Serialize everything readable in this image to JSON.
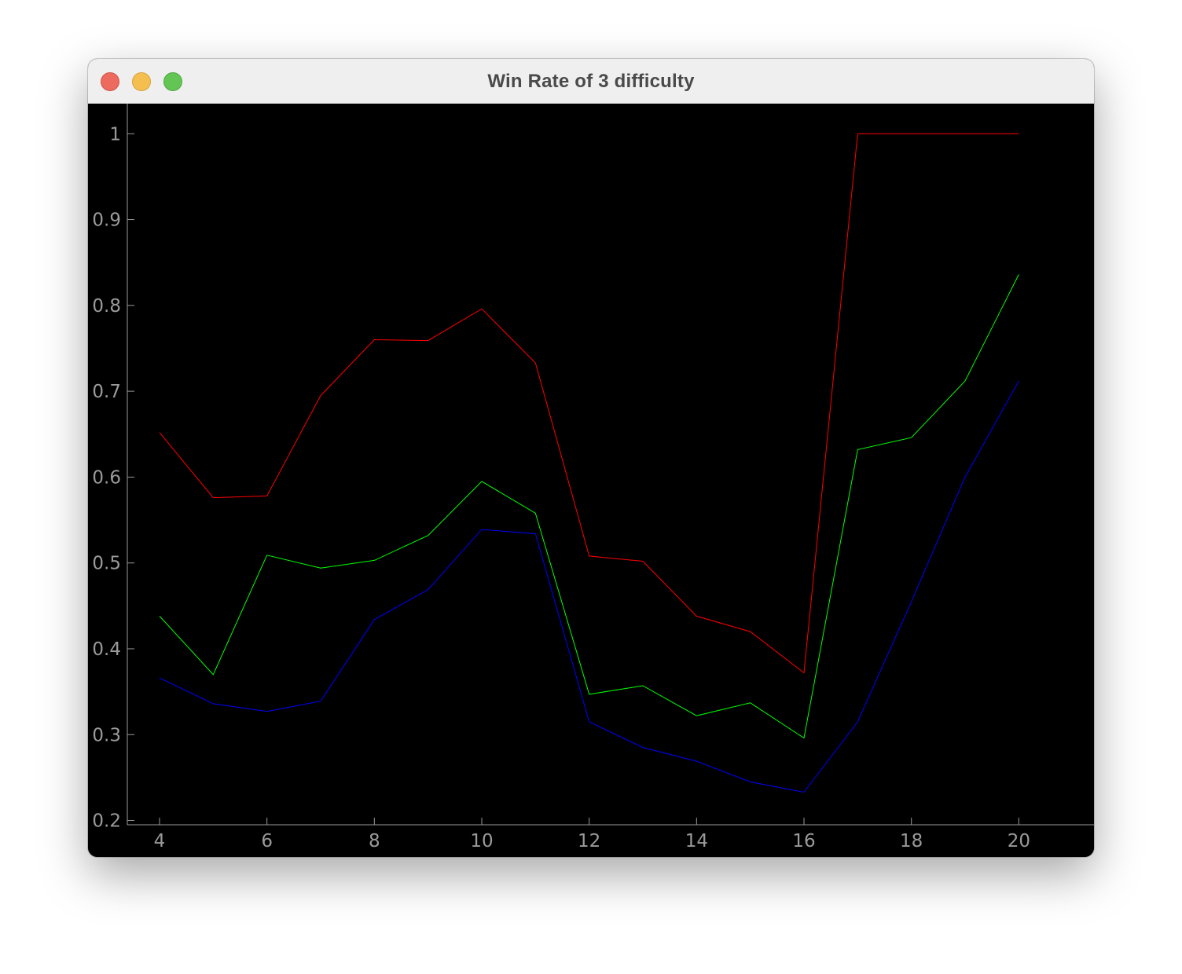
{
  "window": {
    "title": "Win Rate of 3 difficulty"
  },
  "colors": {
    "background": "#000000",
    "axis": "#9a9a9a",
    "titlebar": "#efefef"
  },
  "chart_data": {
    "type": "line",
    "title": "",
    "xlabel": "",
    "ylabel": "",
    "xlim": [
      3.4,
      21.4
    ],
    "ylim": [
      0.195,
      1.035
    ],
    "xticks": [
      4,
      6,
      8,
      10,
      12,
      14,
      16,
      18,
      20
    ],
    "xtick_labels": [
      "4",
      "6",
      "8",
      "10",
      "12",
      "14",
      "16",
      "18",
      "20"
    ],
    "yticks": [
      0.2,
      0.3,
      0.4,
      0.5,
      0.6,
      0.7,
      0.8,
      0.9,
      1.0
    ],
    "ytick_labels": [
      "0.2",
      "0.3",
      "0.4",
      "0.5",
      "0.6",
      "0.7",
      "0.8",
      "0.9",
      "1"
    ],
    "grid": false,
    "x": [
      4,
      5,
      6,
      7,
      8,
      9,
      10,
      11,
      12,
      13,
      14,
      15,
      16,
      17,
      18,
      19,
      20
    ],
    "series": [
      {
        "color": "#ff0000",
        "values": [
          0.652,
          0.576,
          0.578,
          0.695,
          0.76,
          0.759,
          0.796,
          0.733,
          0.508,
          0.502,
          0.438,
          0.42,
          0.372,
          1.0,
          1.0,
          1.0,
          1.0
        ]
      },
      {
        "color": "#00ff00",
        "values": [
          0.438,
          0.37,
          0.509,
          0.494,
          0.503,
          0.532,
          0.595,
          0.558,
          0.347,
          0.357,
          0.322,
          0.337,
          0.296,
          0.632,
          0.646,
          0.712,
          0.836
        ]
      },
      {
        "color": "#0000ff",
        "values": [
          0.366,
          0.336,
          0.327,
          0.339,
          0.434,
          0.469,
          0.539,
          0.534,
          0.315,
          0.285,
          0.269,
          0.245,
          0.233,
          0.315,
          0.455,
          0.6,
          0.712
        ]
      }
    ]
  }
}
